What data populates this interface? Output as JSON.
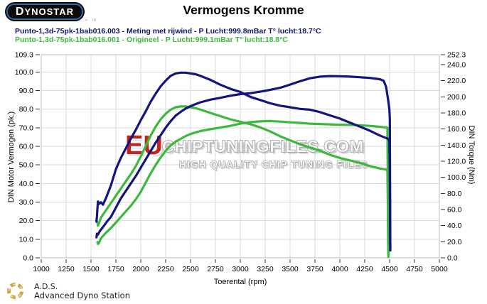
{
  "header": {
    "logo_text": "DYNOSTAR",
    "logo_subtext": ".:=. m",
    "title": "Vermogens Kromme"
  },
  "legend": [
    {
      "label": "Punto-1,3d-75pk-1bab016.003 - Meting met rijwind - P Lucht:999.8mBar T° lucht:18.7°C",
      "color": "#12126e"
    },
    {
      "label": "Punto-1,3d-75pk-1bab016.001 - Origineel - P Lucht:999.1mBar T° lucht:18.8°C",
      "color": "#3cb83c"
    }
  ],
  "watermark": {
    "eu": "EU",
    "main": "CHIPTUNINGFILES.COM",
    "sub": "HIGH QUALITY CHIP TUNING FILES",
    "eu_color": "#c52222",
    "letter_color": "#f6f6f6",
    "outline_color": "#8a8a8a"
  },
  "footer": {
    "abbr": "A.D.S.",
    "name": "Advanced Dyno Station"
  },
  "chart_data": {
    "type": "line",
    "title": "Vermogens Kromme",
    "xlabel": "Toerental (rpm)",
    "ylabel_left": "DIN Motor Vermogen (pk.)",
    "ylabel_right": "DIN Torque (Nm)",
    "xlim": [
      1000,
      5000
    ],
    "ylim_left": [
      0,
      109.3
    ],
    "ylim_right": [
      0,
      252.3
    ],
    "x_ticks": [
      1000,
      1250,
      1500,
      1750,
      2000,
      2250,
      2500,
      2750,
      3000,
      3250,
      3500,
      3750,
      4000,
      4250,
      4500,
      4750,
      5000
    ],
    "y_ticks_left": [
      0,
      10,
      20,
      30,
      40,
      50,
      60,
      70,
      80,
      90,
      100,
      109.3
    ],
    "y_ticks_right": [
      0,
      20,
      40,
      60,
      80,
      100,
      120,
      140,
      160,
      180,
      200,
      220,
      240,
      252.3
    ],
    "grid": true,
    "grid_color": "#d9d9d9",
    "colors": {
      "tuned": "#14147e",
      "original": "#3cb83c"
    },
    "series": [
      {
        "name": "Origineel - koppel (Nm)",
        "axis": "right",
        "color": "#3cb83c",
        "points": [
          [
            1565,
            44
          ],
          [
            1570,
            40
          ],
          [
            1580,
            43
          ],
          [
            1600,
            50
          ],
          [
            1650,
            59
          ],
          [
            1700,
            68
          ],
          [
            1750,
            77
          ],
          [
            1800,
            86
          ],
          [
            1850,
            95
          ],
          [
            1900,
            104
          ],
          [
            1950,
            114
          ],
          [
            2000,
            126
          ],
          [
            2050,
            139
          ],
          [
            2100,
            152
          ],
          [
            2150,
            163
          ],
          [
            2200,
            172
          ],
          [
            2250,
            179
          ],
          [
            2300,
            184
          ],
          [
            2350,
            187
          ],
          [
            2400,
            188
          ],
          [
            2450,
            188
          ],
          [
            2500,
            187
          ],
          [
            2550,
            186
          ],
          [
            2600,
            184
          ],
          [
            2700,
            180
          ],
          [
            2800,
            176
          ],
          [
            2900,
            172
          ],
          [
            3000,
            169
          ],
          [
            3100,
            166
          ],
          [
            3200,
            162
          ],
          [
            3300,
            157
          ],
          [
            3350,
            154
          ],
          [
            3400,
            151
          ],
          [
            3500,
            146
          ],
          [
            3600,
            141
          ],
          [
            3700,
            137
          ],
          [
            3800,
            133
          ],
          [
            3900,
            128
          ],
          [
            4000,
            124
          ],
          [
            4100,
            121
          ],
          [
            4200,
            118
          ],
          [
            4300,
            114
          ],
          [
            4400,
            111
          ],
          [
            4450,
            110
          ],
          [
            4478,
            109
          ],
          [
            4483,
            60
          ],
          [
            4486,
            20
          ],
          [
            4488,
            5
          ]
        ]
      },
      {
        "name": "Origineel - vermogen (pk)",
        "axis": "left",
        "color": "#3cb83c",
        "points": [
          [
            1565,
            8.5
          ],
          [
            1570,
            7.5
          ],
          [
            1580,
            8
          ],
          [
            1600,
            10.5
          ],
          [
            1650,
            13.5
          ],
          [
            1700,
            16
          ],
          [
            1750,
            19
          ],
          [
            1800,
            22
          ],
          [
            1850,
            25
          ],
          [
            1900,
            28
          ],
          [
            1950,
            31.5
          ],
          [
            2000,
            35.5
          ],
          [
            2050,
            40.5
          ],
          [
            2100,
            45.5
          ],
          [
            2150,
            50
          ],
          [
            2200,
            54
          ],
          [
            2250,
            57.5
          ],
          [
            2300,
            60.5
          ],
          [
            2350,
            62.5
          ],
          [
            2400,
            64
          ],
          [
            2450,
            65.5
          ],
          [
            2500,
            66.6
          ],
          [
            2550,
            67.5
          ],
          [
            2600,
            68.2
          ],
          [
            2700,
            69.2
          ],
          [
            2800,
            70.1
          ],
          [
            2900,
            71
          ],
          [
            3000,
            72.2
          ],
          [
            3100,
            73
          ],
          [
            3200,
            73.4
          ],
          [
            3300,
            73.6
          ],
          [
            3400,
            73.3
          ],
          [
            3500,
            72.9
          ],
          [
            3600,
            72.6
          ],
          [
            3700,
            72.2
          ],
          [
            3800,
            72
          ],
          [
            3900,
            71.8
          ],
          [
            4000,
            71.6
          ],
          [
            4100,
            71.5
          ],
          [
            4200,
            71.3
          ],
          [
            4300,
            71
          ],
          [
            4400,
            70.5
          ],
          [
            4450,
            70.2
          ],
          [
            4478,
            70
          ],
          [
            4483,
            35
          ],
          [
            4486,
            8
          ],
          [
            4488,
            0.5
          ]
        ]
      },
      {
        "name": "Meting met rijwind - koppel (Nm)",
        "axis": "right",
        "color": "#14147e",
        "points": [
          [
            1555,
            45
          ],
          [
            1560,
            52
          ],
          [
            1565,
            62
          ],
          [
            1570,
            70
          ],
          [
            1580,
            67
          ],
          [
            1600,
            69
          ],
          [
            1620,
            66
          ],
          [
            1650,
            74
          ],
          [
            1700,
            90
          ],
          [
            1750,
            110
          ],
          [
            1800,
            124
          ],
          [
            1850,
            136
          ],
          [
            1900,
            148
          ],
          [
            1950,
            159
          ],
          [
            2000,
            171
          ],
          [
            2050,
            182
          ],
          [
            2100,
            194
          ],
          [
            2150,
            204
          ],
          [
            2200,
            213
          ],
          [
            2250,
            220
          ],
          [
            2300,
            226
          ],
          [
            2350,
            229
          ],
          [
            2400,
            230
          ],
          [
            2450,
            230
          ],
          [
            2500,
            229
          ],
          [
            2550,
            228
          ],
          [
            2600,
            226
          ],
          [
            2700,
            221
          ],
          [
            2800,
            215
          ],
          [
            2900,
            210
          ],
          [
            3000,
            206
          ],
          [
            3100,
            200
          ],
          [
            3200,
            196
          ],
          [
            3300,
            192
          ],
          [
            3400,
            189
          ],
          [
            3500,
            187
          ],
          [
            3600,
            185
          ],
          [
            3700,
            184
          ],
          [
            3800,
            181
          ],
          [
            3900,
            177
          ],
          [
            4000,
            173
          ],
          [
            4100,
            168
          ],
          [
            4200,
            163
          ],
          [
            4300,
            158
          ],
          [
            4400,
            152
          ],
          [
            4480,
            148
          ],
          [
            4498,
            146
          ],
          [
            4502,
            110
          ],
          [
            4505,
            40
          ],
          [
            4507,
            12
          ]
        ]
      },
      {
        "name": "Meting met rijwind - vermogen (pk)",
        "axis": "left",
        "color": "#14147e",
        "points": [
          [
            1555,
            11
          ],
          [
            1560,
            13
          ],
          [
            1570,
            12.5
          ],
          [
            1590,
            14.5
          ],
          [
            1620,
            16.5
          ],
          [
            1660,
            19.5
          ],
          [
            1700,
            22
          ],
          [
            1750,
            27
          ],
          [
            1800,
            32
          ],
          [
            1850,
            36
          ],
          [
            1900,
            40
          ],
          [
            1950,
            44
          ],
          [
            2000,
            48.5
          ],
          [
            2050,
            53
          ],
          [
            2100,
            57.5
          ],
          [
            2150,
            62
          ],
          [
            2200,
            66
          ],
          [
            2250,
            70
          ],
          [
            2300,
            73.5
          ],
          [
            2350,
            76.5
          ],
          [
            2400,
            78.5
          ],
          [
            2450,
            80.3
          ],
          [
            2500,
            81.6
          ],
          [
            2550,
            82.7
          ],
          [
            2600,
            83.7
          ],
          [
            2700,
            85.1
          ],
          [
            2800,
            86.1
          ],
          [
            2900,
            87.2
          ],
          [
            3000,
            88.1
          ],
          [
            3100,
            88.6
          ],
          [
            3200,
            89.4
          ],
          [
            3300,
            90.4
          ],
          [
            3400,
            91.5
          ],
          [
            3500,
            93.2
          ],
          [
            3600,
            95
          ],
          [
            3700,
            96.6
          ],
          [
            3800,
            97.5
          ],
          [
            3900,
            97.8
          ],
          [
            4000,
            97.7
          ],
          [
            4100,
            97.5
          ],
          [
            4200,
            97.2
          ],
          [
            4300,
            96.8
          ],
          [
            4400,
            96.1
          ],
          [
            4440,
            95.3
          ],
          [
            4465,
            92
          ],
          [
            4485,
            85
          ],
          [
            4498,
            80
          ],
          [
            4502,
            75
          ],
          [
            4505,
            35
          ],
          [
            4507,
            4
          ]
        ]
      }
    ]
  }
}
